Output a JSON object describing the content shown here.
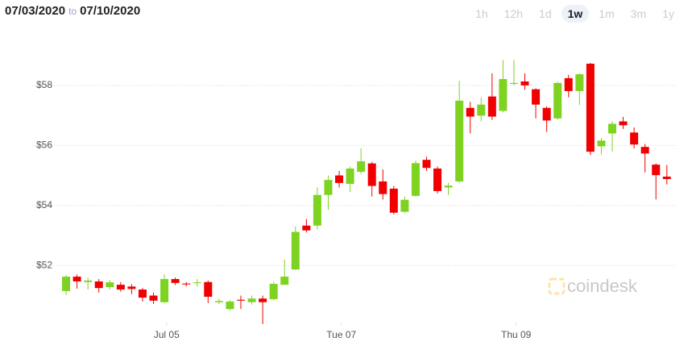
{
  "header": {
    "from": "07/03/2020",
    "to_word": "to",
    "to": "07/10/2020"
  },
  "range_buttons": [
    "1h",
    "12h",
    "1d",
    "1w",
    "1m",
    "3m",
    "1y"
  ],
  "selected_range": "1w",
  "watermark": "coindesk",
  "chart_data": {
    "type": "candlestick",
    "up_color": "#7ed321",
    "down_color": "#f00000",
    "open": [
      51.15,
      51.63,
      51.45,
      51.47,
      51.28,
      51.36,
      51.3,
      51.2,
      51.0,
      50.78,
      51.55,
      51.4,
      51.42,
      51.45,
      50.78,
      50.55,
      50.86,
      50.78,
      50.9,
      50.88,
      51.36,
      51.87,
      53.33,
      53.33,
      54.35,
      55.0,
      54.72,
      55.12,
      55.4,
      54.8,
      54.56,
      53.79,
      54.32,
      55.52,
      55.23,
      54.6,
      54.8,
      57.25,
      56.99,
      57.63,
      57.15,
      58.05,
      58.13,
      57.87,
      57.25,
      56.9,
      58.24,
      57.81,
      58.72,
      55.97,
      56.4,
      56.8,
      56.43,
      55.95,
      55.36,
      54.96
    ],
    "high": [
      51.68,
      51.7,
      51.6,
      51.55,
      51.52,
      51.45,
      51.38,
      51.25,
      51.1,
      51.7,
      51.6,
      51.45,
      51.55,
      51.5,
      50.9,
      50.85,
      51.0,
      51.0,
      51.0,
      51.45,
      52.2,
      53.3,
      53.55,
      54.6,
      55.0,
      55.15,
      55.3,
      55.9,
      55.45,
      55.2,
      54.65,
      54.3,
      55.5,
      55.62,
      55.3,
      54.75,
      58.15,
      57.45,
      57.6,
      58.4,
      58.85,
      58.85,
      58.4,
      57.9,
      57.3,
      58.12,
      58.35,
      58.4,
      58.75,
      56.25,
      56.8,
      56.95,
      56.6,
      56.05,
      55.4,
      55.35
    ],
    "low": [
      51.02,
      51.23,
      51.2,
      51.1,
      51.2,
      51.13,
      51.05,
      50.8,
      50.72,
      50.75,
      51.35,
      51.3,
      51.3,
      50.75,
      50.72,
      50.5,
      50.55,
      50.7,
      50.05,
      50.85,
      51.35,
      51.85,
      53.1,
      53.2,
      53.85,
      54.6,
      54.45,
      55.05,
      54.3,
      54.2,
      53.7,
      53.75,
      54.3,
      55.15,
      54.4,
      54.35,
      54.75,
      56.4,
      56.8,
      56.85,
      57.1,
      58.0,
      57.85,
      56.9,
      56.45,
      56.85,
      57.6,
      57.35,
      55.68,
      55.7,
      55.8,
      56.55,
      55.9,
      55.1,
      54.2,
      54.7
    ],
    "close": [
      51.63,
      51.47,
      51.5,
      51.25,
      51.44,
      51.2,
      51.22,
      50.93,
      50.83,
      51.55,
      51.42,
      51.37,
      51.44,
      50.96,
      50.82,
      50.8,
      50.83,
      50.9,
      50.78,
      51.39,
      51.63,
      53.12,
      53.17,
      54.35,
      54.85,
      54.75,
      55.23,
      55.47,
      54.65,
      54.38,
      53.76,
      54.19,
      55.41,
      55.25,
      54.48,
      54.66,
      57.49,
      56.96,
      57.36,
      56.96,
      58.21,
      58.08,
      58.0,
      57.36,
      56.83,
      58.08,
      57.81,
      58.37,
      55.79,
      56.16,
      56.72,
      56.67,
      56.03,
      55.73,
      55.01,
      54.88
    ],
    "ylim": [
      50.1,
      59.5
    ],
    "yticks": [
      {
        "value": 52,
        "label": "$52"
      },
      {
        "value": 54,
        "label": "$54"
      },
      {
        "value": 56,
        "label": "$56"
      },
      {
        "value": 58,
        "label": "$58"
      }
    ],
    "xlim": [
      -3.1,
      55.9
    ],
    "xticks": [
      {
        "value": 9.2,
        "label": "Jul 05"
      },
      {
        "value": 25.2,
        "label": "Tue 07"
      },
      {
        "value": 41.2,
        "label": "Thu 09"
      }
    ],
    "grid": true
  }
}
